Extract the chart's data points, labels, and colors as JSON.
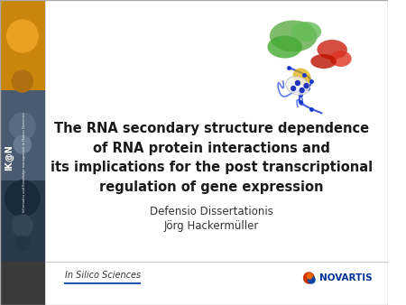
{
  "title_line1": "The RNA secondary structure dependence",
  "title_line2": "of RNA protein interactions and",
  "title_line3": "its implications for the post transcriptional",
  "title_line4": "regulation of gene expression",
  "subtitle1": "Defensio Dissertationis",
  "subtitle2": "Jörg Hackermüller",
  "footer_left": "In Silico Sciences",
  "footer_right": "NOVARTIS",
  "bg_color": "#ffffff",
  "title_color": "#1a1a1a",
  "subtitle_color": "#333333",
  "footer_color": "#555555",
  "accent_blue": "#2255aa",
  "novartis_red": "#cc2200",
  "novartis_blue": "#003399"
}
